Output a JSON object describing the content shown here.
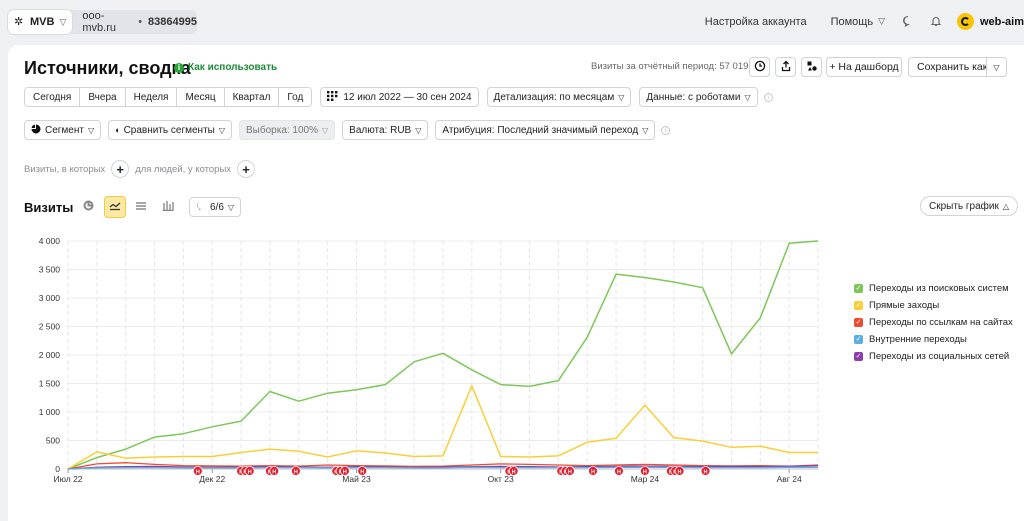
{
  "topbar": {
    "counter_name": "MVB",
    "counter_site": "ooo-mvb.ru",
    "counter_separator": "•",
    "counter_id": "83864995",
    "account_settings": "Настройка аккаунта",
    "help": "Помощь",
    "user": "web-aim",
    "icons": [
      "counter-logo-icon",
      "chevron-down-icon",
      "chat-icon",
      "bell-icon",
      "avatar-icon"
    ]
  },
  "report": {
    "title": "Источники, сводка",
    "how_to_use": "Как использовать",
    "visits_period": "Визиты за отчётный период: 57 019",
    "add_dashboard": "+ На дашборд",
    "save_as": "Сохранить как"
  },
  "filters": {
    "periods": [
      "Сегодня",
      "Вчера",
      "Неделя",
      "Месяц",
      "Квартал",
      "Год"
    ],
    "date_range": "12 июл 2022 — 30 сен 2024",
    "detail": "Детализация: по месяцам",
    "data": "Данные: с роботами",
    "segment": "Сегмент",
    "compare": "Сравнить сегменты",
    "sample": "Выборка: 100%",
    "currency": "Валюта: RUB",
    "attribution": "Атрибуция: Последний значимый переход",
    "visits_where": "Визиты, в которых",
    "people_where": "для людей, у которых"
  },
  "chart_section": {
    "title": "Визиты",
    "series_toggle": "6/6",
    "hide_chart": "Скрыть график"
  },
  "colors": {
    "search": "#7ec65a",
    "direct": "#f7cf3a",
    "referral": "#ef4b32",
    "internal": "#5aaee0",
    "social": "#8d3fa8",
    "annotation": "#e0202f",
    "accent": "#f7c600"
  },
  "chart_data": {
    "type": "line",
    "x": [
      "Июл 22",
      "Авг 22",
      "Сен 22",
      "Окт 22",
      "Ноя 22",
      "Дек 22",
      "Янв 23",
      "Фев 23",
      "Мар 23",
      "Апр 23",
      "Май 23",
      "Июн 23",
      "Июл 23",
      "Авг 23",
      "Сен 23",
      "Окт 23",
      "Ноя 23",
      "Дек 23",
      "Янв 24",
      "Фев 24",
      "Мар 24",
      "Апр 24",
      "Май 24",
      "Июн 24",
      "Июл 24",
      "Авг 24",
      "Сен 24"
    ],
    "xticks": [
      "Июл 22",
      "Дек 22",
      "Май 23",
      "Окт 23",
      "Мар 24",
      "Авг 24"
    ],
    "yticks": [
      "0",
      "500",
      "1 000",
      "1 500",
      "2 000",
      "2 500",
      "3 000",
      "3 500",
      "4 000"
    ],
    "ylim": [
      0,
      4000
    ],
    "series": [
      {
        "name": "Переходы из поисковых систем",
        "color": "#7ec65a",
        "values": [
          0,
          200,
          350,
          560,
          620,
          740,
          840,
          1360,
          1190,
          1330,
          1390,
          1480,
          1880,
          2030,
          1740,
          1480,
          1450,
          1550,
          2310,
          3420,
          3360,
          3280,
          3180,
          2020,
          2650,
          3960,
          4000
        ]
      },
      {
        "name": "Прямые заходы",
        "color": "#f7cf3a",
        "values": [
          0,
          300,
          190,
          210,
          220,
          220,
          290,
          350,
          310,
          210,
          320,
          280,
          220,
          230,
          1460,
          220,
          210,
          230,
          470,
          540,
          1120,
          550,
          490,
          380,
          400,
          290,
          290
        ]
      },
      {
        "name": "Переходы по ссылкам на сайтах",
        "color": "#ef4b32",
        "values": [
          0,
          90,
          110,
          80,
          60,
          55,
          50,
          60,
          50,
          70,
          60,
          55,
          45,
          50,
          70,
          90,
          80,
          70,
          60,
          70,
          80,
          70,
          60,
          55,
          60,
          50,
          70
        ]
      },
      {
        "name": "Внутренние переходы",
        "color": "#5aaee0",
        "values": [
          0,
          20,
          25,
          25,
          20,
          20,
          20,
          25,
          25,
          20,
          25,
          25,
          20,
          20,
          30,
          25,
          25,
          25,
          25,
          30,
          30,
          30,
          25,
          25,
          25,
          30,
          30
        ]
      },
      {
        "name": "Переходы из социальных сетей",
        "color": "#8d3fa8",
        "values": [
          0,
          30,
          40,
          45,
          35,
          30,
          35,
          40,
          35,
          30,
          40,
          35,
          30,
          35,
          40,
          45,
          40,
          35,
          40,
          45,
          50,
          45,
          40,
          45,
          40,
          45,
          60
        ]
      }
    ],
    "annotations": [
      {
        "x": 4.5,
        "label": "Н"
      },
      {
        "x": 6.0,
        "label": "Н"
      },
      {
        "x": 6.15,
        "label": "Н"
      },
      {
        "x": 6.3,
        "label": "Н"
      },
      {
        "x": 7.0,
        "label": "Н"
      },
      {
        "x": 7.15,
        "label": "Н"
      },
      {
        "x": 7.9,
        "label": "Н"
      },
      {
        "x": 9.3,
        "label": "Н"
      },
      {
        "x": 9.45,
        "label": "Н"
      },
      {
        "x": 9.6,
        "label": "Н"
      },
      {
        "x": 10.2,
        "label": "Н"
      },
      {
        "x": 15.3,
        "label": "Н"
      },
      {
        "x": 15.45,
        "label": "Н"
      },
      {
        "x": 17.1,
        "label": "Н"
      },
      {
        "x": 17.25,
        "label": "Н"
      },
      {
        "x": 17.4,
        "label": "Н"
      },
      {
        "x": 18.2,
        "label": "Н"
      },
      {
        "x": 19.1,
        "label": "Н"
      },
      {
        "x": 20.0,
        "label": "Н"
      },
      {
        "x": 20.9,
        "label": "Н"
      },
      {
        "x": 21.05,
        "label": "Н"
      },
      {
        "x": 21.2,
        "label": "Н"
      },
      {
        "x": 22.1,
        "label": "Н"
      }
    ]
  }
}
